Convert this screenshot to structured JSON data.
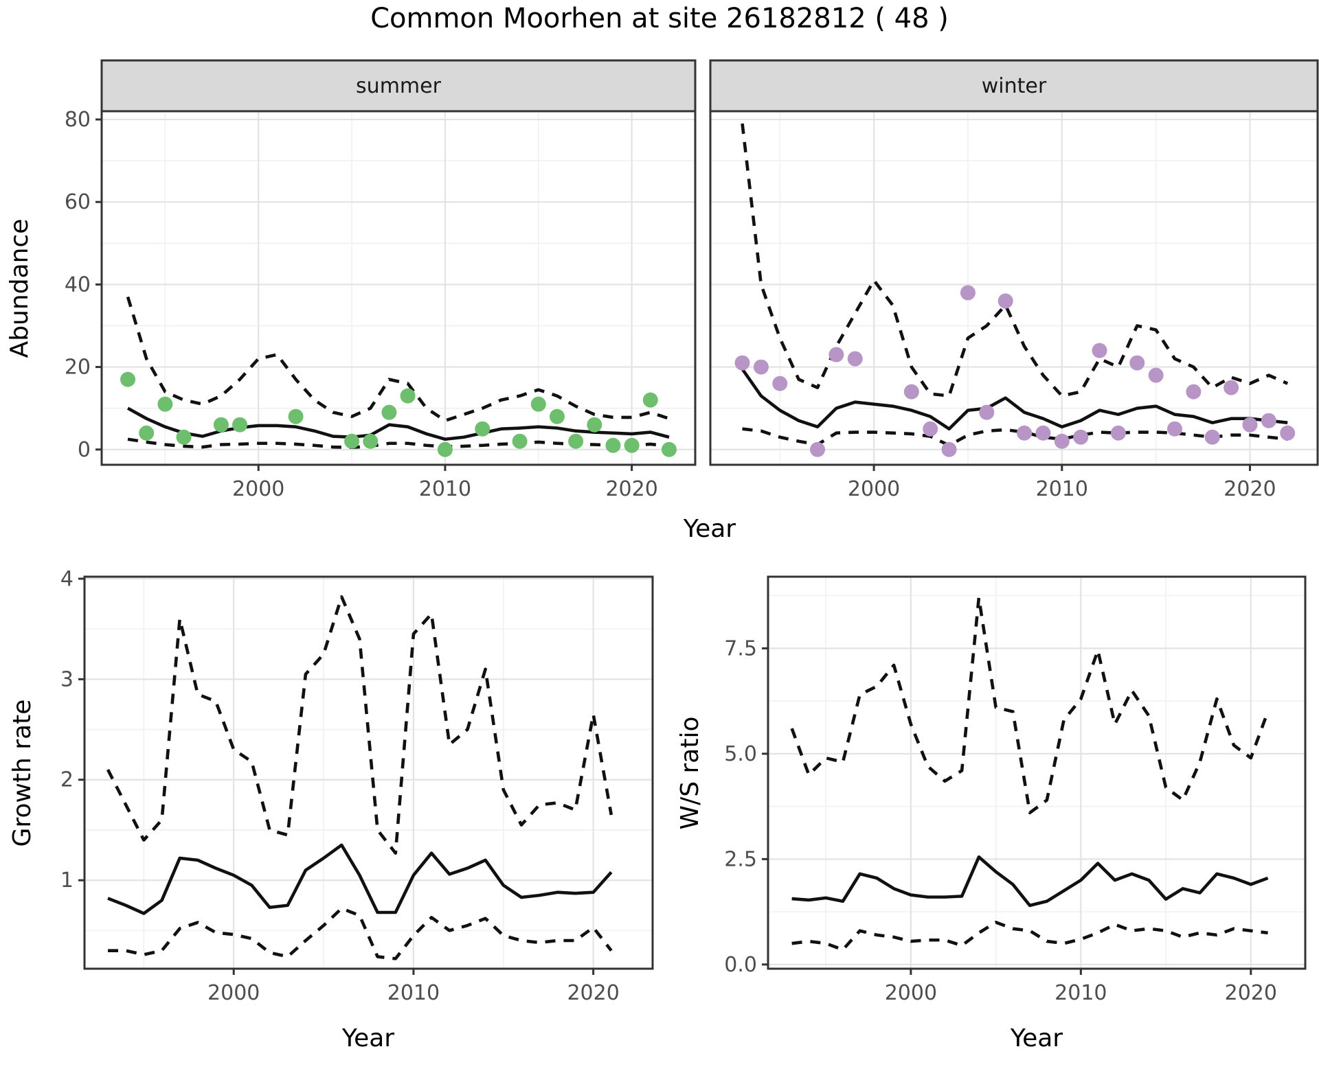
{
  "title": "Common Moorhen at site 26182812 ( 48 )",
  "colors": {
    "summer_points": "#6dbe6d",
    "winter_points": "#b795c7",
    "line": "#111111",
    "panel_border": "#333333",
    "strip_fill": "#d9d9d9",
    "grid_major": "#e3e3e3",
    "grid_minor": "#f0f0f0",
    "tick_label": "#4d4d4d",
    "axis_title": "#000000"
  },
  "chart_data": [
    {
      "id": "abundance_summer",
      "type": "line",
      "facet_label": "summer",
      "ylabel": "Abundance",
      "xlabel": "Year",
      "xlim": [
        1991.6,
        2023.4
      ],
      "ylim": [
        -3.7,
        82
      ],
      "xticks": [
        2000,
        2010,
        2020
      ],
      "xtick_labels": [
        "2000",
        "2010",
        "2020"
      ],
      "xticks_minor": [
        1995,
        2005,
        2015
      ],
      "yticks": [
        0,
        20,
        40,
        60,
        80
      ],
      "ytick_labels": [
        "0",
        "20",
        "40",
        "60",
        "80"
      ],
      "yticks_minor": [
        10,
        30,
        50,
        70
      ],
      "series": [
        {
          "name": "median",
          "style": "solid",
          "x": [
            1993,
            1994,
            1995,
            1996,
            1997,
            1998,
            1999,
            2000,
            2001,
            2002,
            2003,
            2004,
            2005,
            2006,
            2007,
            2008,
            2009,
            2010,
            2011,
            2012,
            2013,
            2014,
            2015,
            2016,
            2017,
            2018,
            2019,
            2020,
            2021,
            2022
          ],
          "y": [
            10,
            7.5,
            5.5,
            4,
            3.2,
            4.5,
            5.3,
            5.8,
            5.8,
            5.5,
            4.5,
            3.2,
            3,
            3.5,
            6,
            5.5,
            3.8,
            2.5,
            3,
            4,
            5,
            5.2,
            5.5,
            5.2,
            4.5,
            4.2,
            4,
            3.8,
            4.2,
            3
          ]
        },
        {
          "name": "upper_ci",
          "style": "dashed",
          "x": [
            1993,
            1994,
            1995,
            1996,
            1997,
            1998,
            1999,
            2000,
            2001,
            2002,
            2003,
            2004,
            2005,
            2006,
            2007,
            2008,
            2009,
            2010,
            2011,
            2012,
            2013,
            2014,
            2015,
            2016,
            2017,
            2018,
            2019,
            2020,
            2021,
            2022
          ],
          "y": [
            37,
            22,
            14,
            12,
            11,
            13,
            17,
            22,
            23,
            17,
            12,
            9,
            8,
            10,
            17,
            16,
            10,
            7,
            8.5,
            10,
            12,
            13,
            14.5,
            13,
            10.5,
            8.5,
            7.8,
            7.8,
            9,
            7.5
          ]
        },
        {
          "name": "lower_ci",
          "style": "dashed",
          "x": [
            1993,
            1994,
            1995,
            1996,
            1997,
            1998,
            1999,
            2000,
            2001,
            2002,
            2003,
            2004,
            2005,
            2006,
            2007,
            2008,
            2009,
            2010,
            2011,
            2012,
            2013,
            2014,
            2015,
            2016,
            2017,
            2018,
            2019,
            2020,
            2021,
            2022
          ],
          "y": [
            2.5,
            1.8,
            1.2,
            0.8,
            0.6,
            1.2,
            1.3,
            1.5,
            1.5,
            1.3,
            1,
            0.6,
            0.5,
            0.8,
            1.5,
            1.5,
            1,
            0.7,
            0.8,
            1,
            1.3,
            1.5,
            1.8,
            1.5,
            1.3,
            1.2,
            1,
            1,
            1.3,
            0.8
          ]
        },
        {
          "name": "observations",
          "style": "points",
          "color_key": "summer_points",
          "x": [
            1993,
            1994,
            1995,
            1996,
            1998,
            1999,
            2002,
            2005,
            2006,
            2007,
            2008,
            2010,
            2012,
            2014,
            2015,
            2016,
            2017,
            2018,
            2019,
            2020,
            2021,
            2022
          ],
          "y": [
            17,
            4,
            11,
            3,
            6,
            6,
            8,
            2,
            2,
            9,
            13,
            0,
            5,
            2,
            11,
            8,
            2,
            6,
            1,
            1,
            12,
            0
          ]
        }
      ]
    },
    {
      "id": "abundance_winter",
      "type": "line",
      "facet_label": "winter",
      "ylabel": "Abundance",
      "xlabel": "Year",
      "xlim": [
        1991.3,
        2023.6
      ],
      "ylim": [
        -3.7,
        82
      ],
      "xticks": [
        2000,
        2010,
        2020
      ],
      "xtick_labels": [
        "2000",
        "2010",
        "2020"
      ],
      "xticks_minor": [
        1995,
        2005,
        2015
      ],
      "yticks": [
        0,
        20,
        40,
        60,
        80
      ],
      "ytick_labels": [
        "0",
        "20",
        "40",
        "60",
        "80"
      ],
      "yticks_minor": [
        10,
        30,
        50,
        70
      ],
      "series": [
        {
          "name": "median",
          "style": "solid",
          "x": [
            1993,
            1994,
            1995,
            1996,
            1997,
            1998,
            1999,
            2000,
            2001,
            2002,
            2003,
            2004,
            2005,
            2006,
            2007,
            2008,
            2009,
            2010,
            2011,
            2012,
            2013,
            2014,
            2015,
            2016,
            2017,
            2018,
            2019,
            2020,
            2021,
            2022
          ],
          "y": [
            19.5,
            13,
            9.5,
            7,
            5.5,
            10,
            11.5,
            11,
            10.5,
            9.5,
            8,
            5,
            9.5,
            10,
            12.5,
            9,
            7.5,
            5.5,
            7,
            9.5,
            8.5,
            10,
            10.5,
            8.5,
            8,
            6.5,
            7.5,
            7.5,
            7,
            6.5
          ]
        },
        {
          "name": "upper_ci",
          "style": "dashed",
          "x": [
            1993,
            1994,
            1995,
            1996,
            1997,
            1998,
            1999,
            2000,
            2001,
            2002,
            2003,
            2004,
            2005,
            2006,
            2007,
            2008,
            2009,
            2010,
            2011,
            2012,
            2013,
            2014,
            2015,
            2016,
            2017,
            2018,
            2019,
            2020,
            2021,
            2022
          ],
          "y": [
            79,
            40,
            27,
            17,
            15,
            25,
            33,
            41,
            35,
            20,
            13.5,
            13,
            27,
            30,
            35,
            25,
            18,
            13,
            14,
            22,
            20,
            30,
            29,
            22,
            20,
            15,
            17.5,
            16,
            18,
            16
          ]
        },
        {
          "name": "lower_ci",
          "style": "dashed",
          "x": [
            1993,
            1994,
            1995,
            1996,
            1997,
            1998,
            1999,
            2000,
            2001,
            2002,
            2003,
            2004,
            2005,
            2006,
            2007,
            2008,
            2009,
            2010,
            2011,
            2012,
            2013,
            2014,
            2015,
            2016,
            2017,
            2018,
            2019,
            2020,
            2021,
            2022
          ],
          "y": [
            5,
            4.5,
            3,
            2,
            1.2,
            4,
            4.2,
            4.2,
            4,
            3.8,
            3.2,
            1,
            3.5,
            4.5,
            4.8,
            4.2,
            3,
            2.5,
            3.5,
            4.2,
            4,
            4.2,
            4.2,
            4,
            3.5,
            3,
            3.5,
            3.5,
            3,
            2.5
          ]
        },
        {
          "name": "observations",
          "style": "points",
          "color_key": "winter_points",
          "x": [
            1993,
            1994,
            1995,
            1997,
            1998,
            1999,
            2002,
            2003,
            2004,
            2005,
            2006,
            2007,
            2008,
            2009,
            2010,
            2011,
            2012,
            2013,
            2014,
            2015,
            2016,
            2017,
            2018,
            2019,
            2020,
            2021,
            2022
          ],
          "y": [
            21,
            20,
            16,
            0,
            23,
            22,
            14,
            5,
            0,
            38,
            9,
            36,
            4,
            4,
            2,
            3,
            24,
            4,
            21,
            18,
            5,
            14,
            3,
            15,
            6,
            7,
            4
          ]
        }
      ]
    },
    {
      "id": "growth_rate",
      "type": "line",
      "facet_label": null,
      "ylabel": "Growth rate",
      "xlabel": "Year",
      "xlim": [
        1991.7,
        2023.3
      ],
      "ylim": [
        0.12,
        4.02
      ],
      "xticks": [
        2000,
        2010,
        2020
      ],
      "xtick_labels": [
        "2000",
        "2010",
        "2020"
      ],
      "xticks_minor": [
        1995,
        2005,
        2015
      ],
      "yticks": [
        1,
        2,
        3,
        4
      ],
      "ytick_labels": [
        "1",
        "2",
        "3",
        "4"
      ],
      "yticks_minor": [
        0.5,
        1.5,
        2.5,
        3.5
      ],
      "series": [
        {
          "name": "median",
          "style": "solid",
          "x": [
            1993,
            1994,
            1995,
            1996,
            1997,
            1998,
            1999,
            2000,
            2001,
            2002,
            2003,
            2004,
            2005,
            2006,
            2007,
            2008,
            2009,
            2010,
            2011,
            2012,
            2013,
            2014,
            2015,
            2016,
            2017,
            2018,
            2019,
            2020,
            2021
          ],
          "y": [
            0.82,
            0.75,
            0.67,
            0.8,
            1.22,
            1.2,
            1.12,
            1.05,
            0.95,
            0.73,
            0.75,
            1.1,
            1.22,
            1.35,
            1.05,
            0.68,
            0.68,
            1.05,
            1.27,
            1.06,
            1.12,
            1.2,
            0.95,
            0.83,
            0.85,
            0.88,
            0.87,
            0.88,
            1.08
          ]
        },
        {
          "name": "upper_ci",
          "style": "dashed",
          "x": [
            1993,
            1994,
            1995,
            1996,
            1997,
            1998,
            1999,
            2000,
            2001,
            2002,
            2003,
            2004,
            2005,
            2006,
            2007,
            2008,
            2009,
            2010,
            2011,
            2012,
            2013,
            2014,
            2015,
            2016,
            2017,
            2018,
            2019,
            2020,
            2021
          ],
          "y": [
            2.1,
            1.75,
            1.4,
            1.6,
            3.6,
            2.85,
            2.78,
            2.3,
            2.18,
            1.5,
            1.45,
            3.05,
            3.25,
            3.82,
            3.4,
            1.5,
            1.27,
            3.45,
            3.65,
            2.35,
            2.5,
            3.1,
            1.9,
            1.55,
            1.75,
            1.77,
            1.7,
            2.65,
            1.65
          ]
        },
        {
          "name": "lower_ci",
          "style": "dashed",
          "x": [
            1993,
            1994,
            1995,
            1996,
            1997,
            1998,
            1999,
            2000,
            2001,
            2002,
            2003,
            2004,
            2005,
            2006,
            2007,
            2008,
            2009,
            2010,
            2011,
            2012,
            2013,
            2014,
            2015,
            2016,
            2017,
            2018,
            2019,
            2020,
            2021
          ],
          "y": [
            0.3,
            0.3,
            0.26,
            0.3,
            0.52,
            0.58,
            0.48,
            0.46,
            0.42,
            0.28,
            0.24,
            0.4,
            0.55,
            0.72,
            0.65,
            0.24,
            0.22,
            0.45,
            0.63,
            0.5,
            0.55,
            0.62,
            0.45,
            0.4,
            0.38,
            0.4,
            0.4,
            0.53,
            0.3
          ]
        }
      ]
    },
    {
      "id": "ws_ratio",
      "type": "line",
      "facet_label": null,
      "ylabel": "W/S ratio",
      "xlabel": "Year",
      "xlim": [
        1991.6,
        2023.2
      ],
      "ylim": [
        -0.1,
        9.2
      ],
      "xticks": [
        2000,
        2010,
        2020
      ],
      "xtick_labels": [
        "2000",
        "2010",
        "2020"
      ],
      "xticks_minor": [
        1995,
        2005,
        2015
      ],
      "yticks": [
        0,
        2.5,
        5,
        7.5
      ],
      "ytick_labels": [
        "0.0",
        "2.5",
        "5.0",
        "7.5"
      ],
      "yticks_minor": [
        1.25,
        3.75,
        6.25,
        8.75
      ],
      "series": [
        {
          "name": "median",
          "style": "solid",
          "x": [
            1993,
            1994,
            1995,
            1996,
            1997,
            1998,
            1999,
            2000,
            2001,
            2002,
            2003,
            2004,
            2005,
            2006,
            2007,
            2008,
            2009,
            2010,
            2011,
            2012,
            2013,
            2014,
            2015,
            2016,
            2017,
            2018,
            2019,
            2020,
            2021
          ],
          "y": [
            1.56,
            1.53,
            1.58,
            1.5,
            2.15,
            2.05,
            1.8,
            1.65,
            1.6,
            1.6,
            1.62,
            2.55,
            2.2,
            1.9,
            1.4,
            1.5,
            1.75,
            2.0,
            2.4,
            2.0,
            2.15,
            2.0,
            1.55,
            1.8,
            1.7,
            2.15,
            2.05,
            1.9,
            2.05
          ]
        },
        {
          "name": "upper_ci",
          "style": "dashed",
          "x": [
            1993,
            1994,
            1995,
            1996,
            1997,
            1998,
            1999,
            2000,
            2001,
            2002,
            2003,
            2004,
            2005,
            2006,
            2007,
            2008,
            2009,
            2010,
            2011,
            2012,
            2013,
            2014,
            2015,
            2016,
            2017,
            2018,
            2019,
            2020,
            2021
          ],
          "y": [
            5.6,
            4.5,
            4.9,
            4.8,
            6.4,
            6.6,
            7.1,
            5.7,
            4.7,
            4.35,
            4.6,
            8.7,
            6.1,
            6.0,
            3.6,
            3.9,
            5.8,
            6.3,
            7.45,
            5.7,
            6.5,
            5.9,
            4.2,
            3.9,
            4.8,
            6.3,
            5.2,
            4.9,
            6.0
          ]
        },
        {
          "name": "lower_ci",
          "style": "dashed",
          "x": [
            1993,
            1994,
            1995,
            1996,
            1997,
            1998,
            1999,
            2000,
            2001,
            2002,
            2003,
            2004,
            2005,
            2006,
            2007,
            2008,
            2009,
            2010,
            2011,
            2012,
            2013,
            2014,
            2015,
            2016,
            2017,
            2018,
            2019,
            2020,
            2021
          ],
          "y": [
            0.5,
            0.55,
            0.5,
            0.35,
            0.8,
            0.7,
            0.65,
            0.55,
            0.58,
            0.58,
            0.45,
            0.75,
            1.0,
            0.85,
            0.8,
            0.55,
            0.5,
            0.6,
            0.75,
            0.95,
            0.8,
            0.85,
            0.8,
            0.65,
            0.75,
            0.7,
            0.85,
            0.8,
            0.75
          ]
        }
      ]
    }
  ]
}
